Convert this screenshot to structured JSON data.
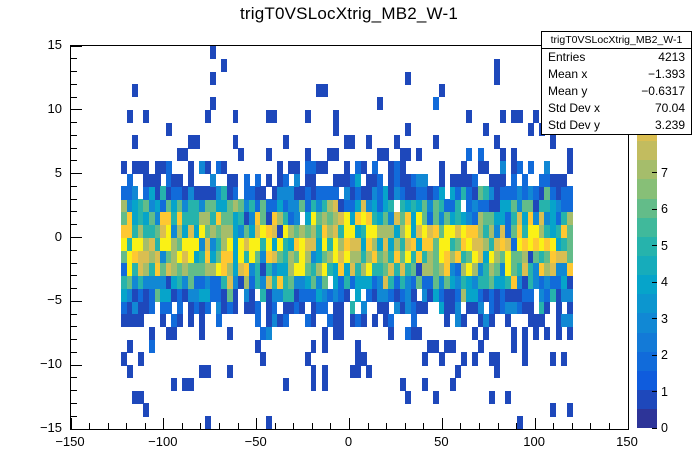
{
  "chart": {
    "title": "trigT0VSLocXtrig_MB2_W-1"
  },
  "stats": {
    "title": "trigT0VSLocXtrig_MB2_W-1",
    "rows": [
      {
        "label": "Entries",
        "value": "4213"
      },
      {
        "label": "Mean x",
        "value": "−1.393"
      },
      {
        "label": "Mean y",
        "value": "−0.6317"
      },
      {
        "label": "Std Dev x",
        "value": "70.04"
      },
      {
        "label": "Std Dev y",
        "value": "3.239"
      }
    ]
  },
  "axes": {
    "x": {
      "min": -150,
      "max": 150,
      "ticks": [
        -150,
        -100,
        -50,
        0,
        50,
        100,
        150
      ],
      "minor_step": 10
    },
    "y": {
      "min": -15,
      "max": 15,
      "ticks": [
        -15,
        -10,
        -5,
        0,
        5,
        10,
        15
      ],
      "minor_step": 1
    },
    "z": {
      "min": 0,
      "max": 10.5,
      "ticks": [
        0,
        1,
        2,
        3,
        4,
        5,
        6,
        7
      ]
    }
  },
  "palette": {
    "name": "root-kbird-palette",
    "stops": [
      "#352a87",
      "#0f5cdd",
      "#1481d6",
      "#06a4ca",
      "#2eb7a4",
      "#87bf77",
      "#d1bb59",
      "#fec832",
      "#f9fb0e"
    ],
    "contours": 20
  },
  "chart_data": {
    "type": "heatmap",
    "title": "trigT0VSLocXtrig_MB2_W-1",
    "entries": 4213,
    "mean_x": -1.393,
    "mean_y": -0.6317,
    "std_dev_x": 70.04,
    "std_dev_y": 3.239,
    "xlim": [
      -150,
      150
    ],
    "ylim": [
      -15,
      15
    ],
    "zlim": [
      0,
      10.5
    ],
    "bins_x": 100,
    "bins_y": 30,
    "x_data_extent": [
      -122,
      122
    ],
    "dense_band_y_extent": [
      -4,
      4
    ],
    "gen": {
      "seed": 20240613,
      "x_mean": -1.4,
      "x_half_range": 121.3,
      "y_mean": -0.63,
      "core_fraction": 0.9,
      "core_sigma": 2.45,
      "tail_sigma": 6.5
    }
  }
}
